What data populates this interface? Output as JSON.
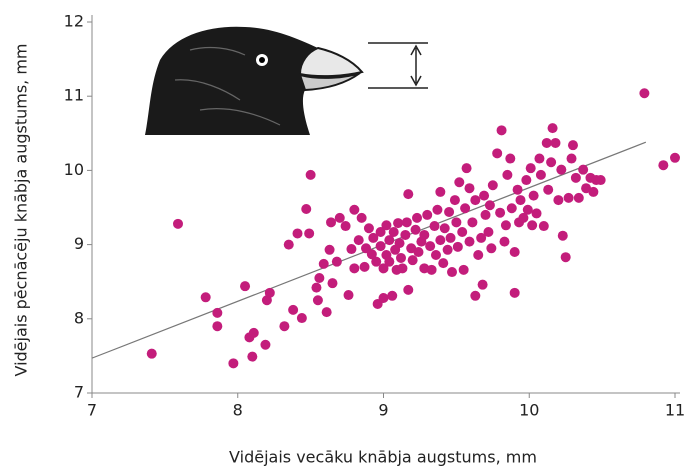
{
  "chart_data": {
    "type": "scatter",
    "x_label": "Vidējais vecāku knābja augstums, mm",
    "y_label": "Vidējais pēcnācēju knābja augstums, mm",
    "xlim": [
      7,
      11
    ],
    "ylim": [
      7,
      12
    ],
    "xticks": [
      7,
      8,
      9,
      10,
      11
    ],
    "yticks": [
      7,
      8,
      9,
      10,
      11,
      12
    ],
    "trend_line": {
      "color": "#777777",
      "x": [
        7,
        10.8
      ],
      "y": [
        7.47,
        10.38
      ]
    },
    "series": [
      {
        "color": "#c31d7b",
        "x": [
          7.41,
          7.59,
          7.78,
          7.86,
          7.86,
          7.97,
          8.05,
          8.08,
          8.11,
          8.1,
          8.19,
          8.2,
          8.22,
          8.32,
          8.38,
          8.35,
          8.41,
          8.44,
          8.47,
          8.49,
          8.5,
          8.54,
          8.55,
          8.56,
          8.59,
          8.61,
          8.63,
          8.64,
          8.65,
          8.68,
          8.7,
          8.74,
          8.76,
          8.78,
          8.8,
          8.8,
          8.83,
          8.85,
          8.87,
          8.88,
          8.9,
          8.92,
          8.93,
          8.95,
          8.96,
          8.98,
          8.98,
          9.0,
          9.0,
          9.02,
          9.02,
          9.04,
          9.04,
          9.06,
          9.07,
          9.08,
          9.09,
          9.1,
          9.11,
          9.12,
          9.13,
          9.15,
          9.16,
          9.17,
          9.17,
          9.19,
          9.2,
          9.22,
          9.23,
          9.24,
          9.26,
          9.28,
          9.28,
          9.3,
          9.32,
          9.33,
          9.35,
          9.36,
          9.37,
          9.39,
          9.39,
          9.41,
          9.42,
          9.44,
          9.45,
          9.46,
          9.47,
          9.49,
          9.5,
          9.51,
          9.52,
          9.54,
          9.55,
          9.56,
          9.57,
          9.59,
          9.59,
          9.61,
          9.63,
          9.63,
          9.65,
          9.67,
          9.68,
          9.69,
          9.7,
          9.72,
          9.73,
          9.74,
          9.75,
          9.78,
          9.8,
          9.81,
          9.83,
          9.84,
          9.85,
          9.87,
          9.88,
          9.9,
          9.9,
          9.92,
          9.93,
          9.94,
          9.96,
          9.98,
          9.99,
          10.01,
          10.02,
          10.03,
          10.05,
          10.07,
          10.08,
          10.1,
          10.12,
          10.13,
          10.15,
          10.16,
          10.18,
          10.2,
          10.22,
          10.23,
          10.25,
          10.27,
          10.29,
          10.3,
          10.32,
          10.34,
          10.37,
          10.39,
          10.42,
          10.44,
          10.46,
          10.49,
          10.79,
          10.92,
          11.0
        ],
        "y": [
          7.53,
          9.28,
          8.29,
          8.08,
          7.9,
          7.4,
          8.44,
          7.75,
          7.81,
          7.49,
          7.65,
          8.25,
          8.35,
          7.9,
          8.12,
          9.0,
          9.15,
          8.01,
          9.48,
          9.15,
          9.94,
          8.42,
          8.25,
          8.55,
          8.74,
          8.09,
          8.93,
          9.3,
          8.48,
          8.77,
          9.36,
          9.25,
          8.32,
          8.94,
          9.47,
          8.68,
          9.06,
          9.36,
          8.7,
          8.95,
          9.22,
          8.87,
          9.09,
          8.77,
          8.2,
          9.17,
          8.98,
          8.68,
          8.28,
          9.26,
          8.86,
          9.06,
          8.77,
          8.31,
          9.17,
          8.93,
          8.66,
          9.29,
          9.02,
          8.82,
          8.68,
          9.13,
          9.3,
          9.68,
          8.39,
          8.95,
          8.79,
          9.2,
          9.36,
          8.9,
          9.04,
          9.13,
          8.68,
          9.4,
          8.98,
          8.66,
          9.25,
          8.86,
          9.47,
          9.06,
          9.71,
          8.75,
          9.22,
          8.93,
          9.44,
          9.09,
          8.63,
          9.6,
          9.3,
          8.97,
          9.84,
          9.17,
          8.66,
          9.49,
          10.03,
          9.04,
          9.76,
          9.3,
          8.31,
          9.6,
          8.86,
          9.09,
          8.46,
          9.66,
          9.4,
          9.17,
          9.53,
          8.95,
          9.8,
          10.23,
          9.43,
          10.54,
          9.04,
          9.26,
          9.94,
          10.16,
          9.49,
          8.9,
          8.35,
          9.74,
          9.3,
          9.6,
          9.36,
          9.87,
          9.47,
          10.03,
          9.26,
          9.66,
          9.42,
          10.16,
          9.94,
          9.25,
          10.37,
          9.74,
          10.11,
          10.57,
          10.37,
          9.6,
          10.01,
          9.12,
          8.83,
          9.63,
          10.16,
          10.34,
          9.9,
          9.63,
          10.01,
          9.76,
          9.9,
          9.71,
          9.87,
          9.87,
          11.04,
          10.07,
          10.17
        ]
      }
    ]
  }
}
